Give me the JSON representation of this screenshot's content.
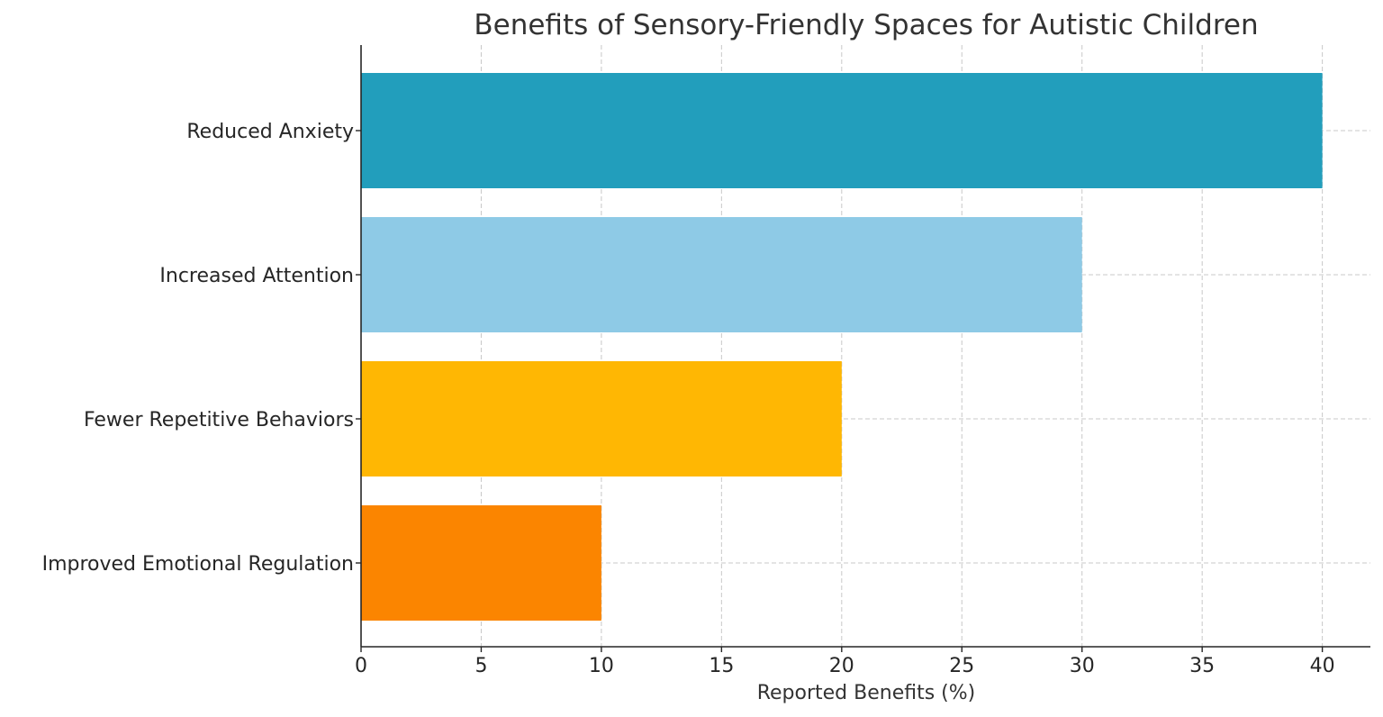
{
  "chart_data": {
    "type": "bar",
    "orientation": "horizontal",
    "title": "Benefits of Sensory-Friendly Spaces for Autistic Children",
    "xlabel": "Reported Benefits (%)",
    "ylabel": "",
    "categories": [
      "Reduced Anxiety",
      "Increased Attention",
      "Fewer Repetitive Behaviors",
      "Improved Emotional Regulation"
    ],
    "values": [
      40,
      30,
      20,
      10
    ],
    "colors": [
      "#229EBC",
      "#8ECAE6",
      "#FFB703",
      "#FB8500"
    ],
    "xlim": [
      0,
      42
    ],
    "xticks": [
      "0",
      "5",
      "10",
      "15",
      "20",
      "25",
      "30",
      "35",
      "40"
    ],
    "grid": true
  }
}
